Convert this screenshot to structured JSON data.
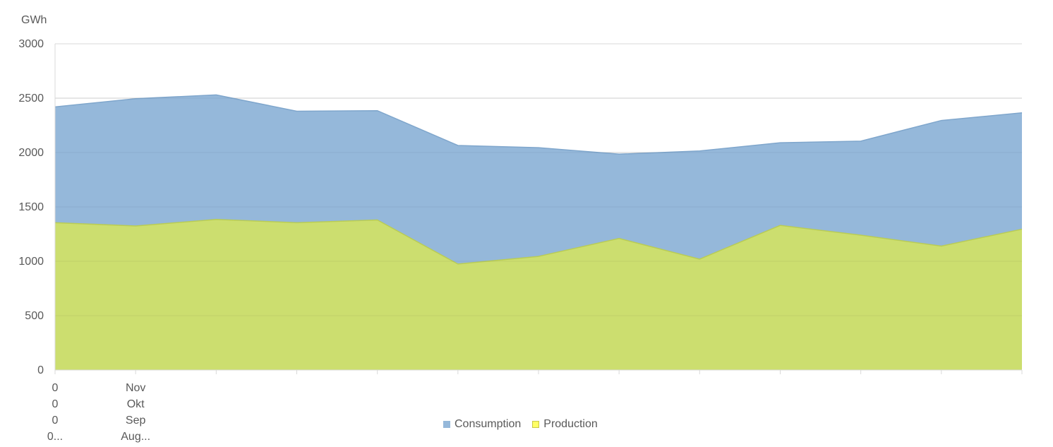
{
  "chart_data": {
    "type": "area",
    "unit_label": "GWh",
    "ylim": [
      0,
      3000
    ],
    "yticks": [
      "0",
      "500",
      "1000",
      "1500",
      "2000",
      "2500",
      "3000"
    ],
    "grid": true,
    "legend_position": "bottom",
    "x_tick_labels": [
      [
        "0",
        "0",
        "0",
        "0..."
      ],
      [
        "Nov",
        "Okt",
        "Sep",
        "Aug..."
      ]
    ],
    "series": [
      {
        "name": "Consumption",
        "color": "#95b8da",
        "values": [
          2420,
          2495,
          2530,
          2380,
          2385,
          2065,
          2045,
          1985,
          2015,
          2090,
          2105,
          2295,
          2365
        ]
      },
      {
        "name": "Production",
        "color": "#cddf6b",
        "values": [
          1355,
          1325,
          1385,
          1355,
          1380,
          975,
          1045,
          1210,
          1020,
          1330,
          1240,
          1140,
          1295
        ]
      }
    ],
    "legend": [
      {
        "name": "Consumption",
        "color": "#95b8da"
      },
      {
        "name": "Production",
        "color": "#ffff66"
      }
    ]
  }
}
